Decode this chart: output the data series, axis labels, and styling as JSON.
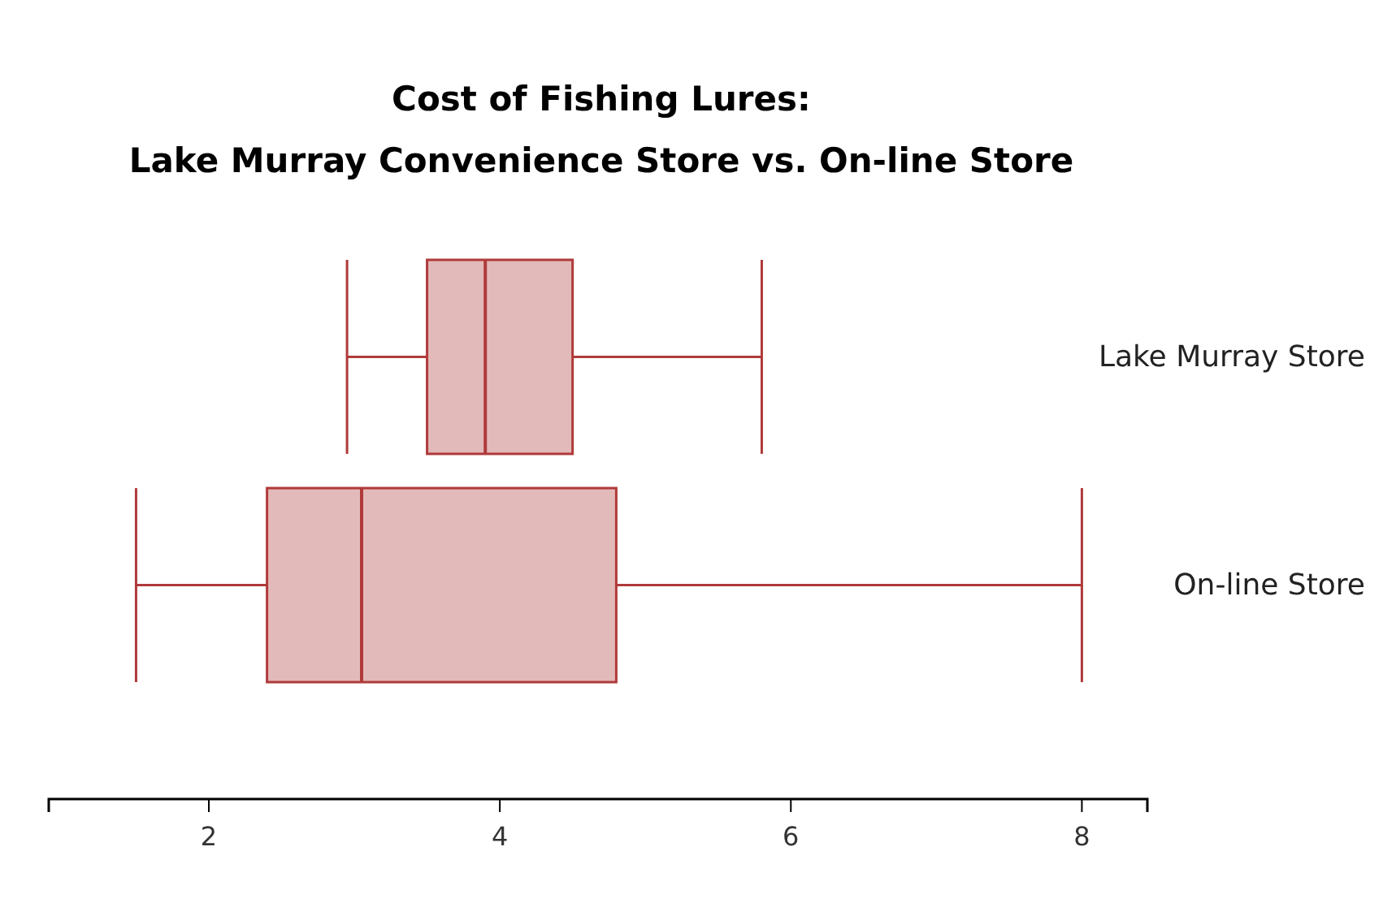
{
  "chart_data": {
    "type": "box",
    "title": "Cost of Fishing Lures:\nLake Murray Convenience Store vs. On-line Store",
    "orientation": "horizontal",
    "categories": [
      "Lake Murray Store",
      "On-line Store"
    ],
    "boxes": [
      {
        "low": 2.95,
        "q1": 3.5,
        "median": 3.9,
        "q3": 4.5,
        "high": 5.8
      },
      {
        "low": 1.5,
        "q1": 2.4,
        "median": 3.05,
        "q3": 4.8,
        "high": 8
      }
    ],
    "color": "#b03a3a",
    "xlim": [
      0.9,
      8.45
    ],
    "xticks": [
      2,
      4,
      6,
      8
    ],
    "grid": false
  }
}
